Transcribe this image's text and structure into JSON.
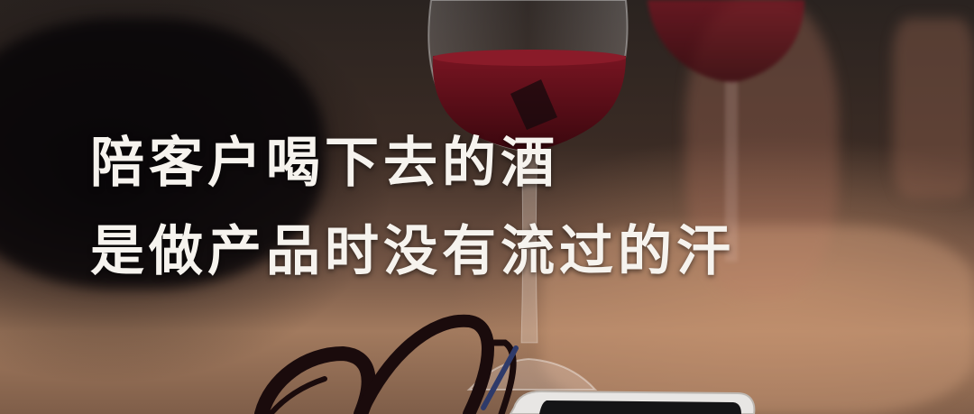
{
  "caption": {
    "line1": "陪客户喝下去的酒",
    "line2": "是做产品时没有流过的汗"
  },
  "colors": {
    "text": "#f6f3ee",
    "wine": "#5a0e18",
    "table": "#a27a5e"
  }
}
